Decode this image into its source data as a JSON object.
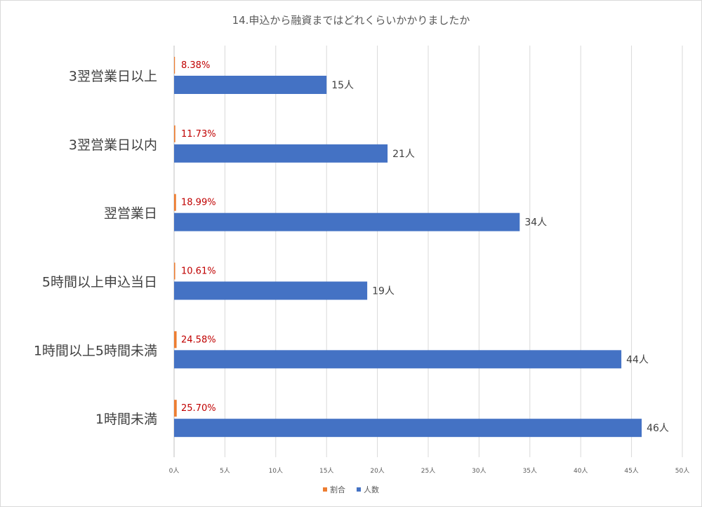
{
  "chart_data": {
    "type": "bar",
    "orientation": "horizontal",
    "title": "14.申込から融資まではどれくらいかかりましたか",
    "categories": [
      "3翌営業日以上",
      "3翌営業日以内",
      "翌営業日",
      "5時間以上申込当日",
      "1時間以上5時間未満",
      "1時間未満"
    ],
    "series": [
      {
        "name": "割合",
        "color": "#ed7d31",
        "values": [
          0.0838,
          0.1173,
          0.1899,
          0.1061,
          0.2458,
          0.257
        ],
        "labels": [
          "8.38%",
          "11.73%",
          "18.99%",
          "10.61%",
          "24.58%",
          "25.70%"
        ]
      },
      {
        "name": "人数",
        "color": "#4472c4",
        "values": [
          15,
          21,
          34,
          19,
          44,
          46
        ],
        "labels": [
          "15人",
          "21人",
          "34人",
          "19人",
          "44人",
          "46人"
        ]
      }
    ],
    "xlim": [
      0,
      50
    ],
    "ticks": [
      "0人",
      "5人",
      "10人",
      "15人",
      "20人",
      "25人",
      "30人",
      "35人",
      "40人",
      "45人",
      "50人"
    ],
    "grid": true,
    "legend_position": "bottom"
  }
}
